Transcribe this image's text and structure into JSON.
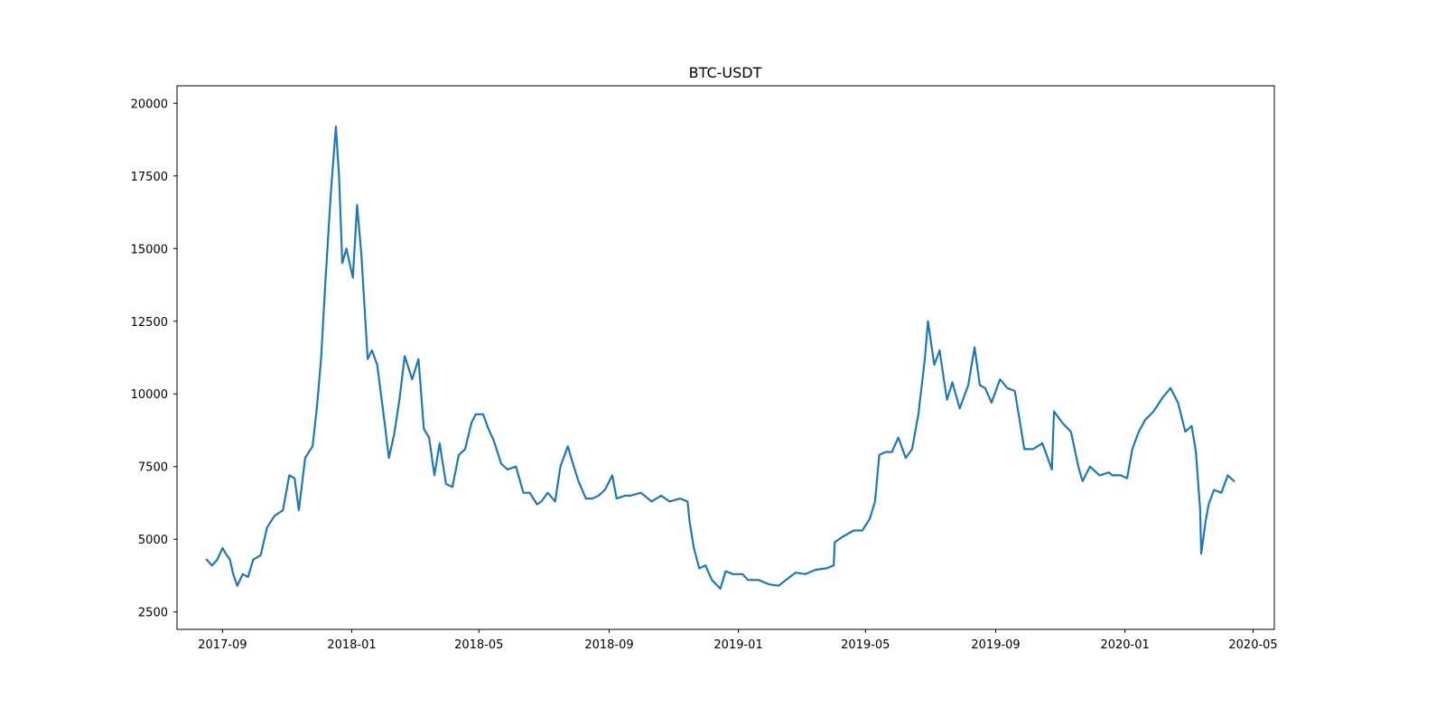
{
  "chart_data": {
    "type": "line",
    "title": "BTC-USDT",
    "xlabel": "",
    "ylabel": "",
    "xlim": [
      "2017-07-20",
      "2020-05-21"
    ],
    "ylim": [
      1900,
      20600
    ],
    "x_ticks": [
      "2017-09-01",
      "2018-01-01",
      "2018-05-01",
      "2018-09-01",
      "2019-01-01",
      "2019-05-01",
      "2019-09-01",
      "2020-01-01",
      "2020-05-01"
    ],
    "x_tick_labels": [
      "2017-09",
      "2018-01",
      "2018-05",
      "2018-09",
      "2019-01",
      "2019-05",
      "2019-09",
      "2020-01",
      "2020-05"
    ],
    "y_ticks": [
      2500,
      5000,
      7500,
      10000,
      12500,
      15000,
      17500,
      20000
    ],
    "y_tick_labels": [
      "2500",
      "5000",
      "7500",
      "10000",
      "12500",
      "15000",
      "17500",
      "20000"
    ],
    "grid": false,
    "legend": "none",
    "line_color": "#1f77b4",
    "series": [
      {
        "x": [
          "2017-08-17",
          "2017-08-22",
          "2017-08-27",
          "2017-09-01",
          "2017-09-05",
          "2017-09-08",
          "2017-09-11",
          "2017-09-15",
          "2017-09-20",
          "2017-09-25",
          "2017-09-30",
          "2017-10-07",
          "2017-10-13",
          "2017-10-20",
          "2017-10-28",
          "2017-11-03",
          "2017-11-08",
          "2017-11-12",
          "2017-11-18",
          "2017-11-25",
          "2017-11-29",
          "2017-12-03",
          "2017-12-07",
          "2017-12-12",
          "2017-12-17",
          "2017-12-20",
          "2017-12-23",
          "2017-12-27",
          "2018-01-02",
          "2018-01-06",
          "2018-01-10",
          "2018-01-16",
          "2018-01-20",
          "2018-01-25",
          "2018-02-01",
          "2018-02-05",
          "2018-02-10",
          "2018-02-15",
          "2018-02-20",
          "2018-02-27",
          "2018-03-05",
          "2018-03-10",
          "2018-03-15",
          "2018-03-20",
          "2018-03-25",
          "2018-03-31",
          "2018-04-06",
          "2018-04-12",
          "2018-04-18",
          "2018-04-24",
          "2018-04-28",
          "2018-05-05",
          "2018-05-10",
          "2018-05-15",
          "2018-05-22",
          "2018-05-28",
          "2018-06-05",
          "2018-06-12",
          "2018-06-18",
          "2018-06-25",
          "2018-06-29",
          "2018-07-05",
          "2018-07-12",
          "2018-07-17",
          "2018-07-24",
          "2018-07-28",
          "2018-08-03",
          "2018-08-10",
          "2018-08-16",
          "2018-08-22",
          "2018-08-28",
          "2018-09-04",
          "2018-09-08",
          "2018-09-16",
          "2018-09-21",
          "2018-10-01",
          "2018-10-11",
          "2018-10-20",
          "2018-10-28",
          "2018-11-07",
          "2018-11-14",
          "2018-11-16",
          "2018-11-20",
          "2018-11-25",
          "2018-12-01",
          "2018-12-07",
          "2018-12-15",
          "2018-12-20",
          "2018-12-27",
          "2019-01-05",
          "2019-01-10",
          "2019-01-20",
          "2019-01-30",
          "2019-02-08",
          "2019-02-15",
          "2019-02-24",
          "2019-03-05",
          "2019-03-15",
          "2019-03-25",
          "2019-04-01",
          "2019-04-02",
          "2019-04-10",
          "2019-04-20",
          "2019-04-28",
          "2019-05-05",
          "2019-05-10",
          "2019-05-14",
          "2019-05-20",
          "2019-05-26",
          "2019-06-01",
          "2019-06-08",
          "2019-06-14",
          "2019-06-20",
          "2019-06-26",
          "2019-06-29",
          "2019-07-05",
          "2019-07-10",
          "2019-07-14",
          "2019-07-17",
          "2019-07-22",
          "2019-07-29",
          "2019-08-06",
          "2019-08-12",
          "2019-08-17",
          "2019-08-22",
          "2019-08-28",
          "2019-09-05",
          "2019-09-12",
          "2019-09-19",
          "2019-09-24",
          "2019-09-28",
          "2019-10-06",
          "2019-10-15",
          "2019-10-24",
          "2019-10-26",
          "2019-11-03",
          "2019-11-11",
          "2019-11-18",
          "2019-11-22",
          "2019-11-29",
          "2019-12-08",
          "2019-12-17",
          "2019-12-20",
          "2019-12-28",
          "2020-01-03",
          "2020-01-08",
          "2020-01-14",
          "2020-01-20",
          "2020-01-28",
          "2020-02-06",
          "2020-02-13",
          "2020-02-20",
          "2020-02-27",
          "2020-03-04",
          "2020-03-08",
          "2020-03-12",
          "2020-03-13",
          "2020-03-17",
          "2020-03-20",
          "2020-03-25",
          "2020-04-01",
          "2020-04-07",
          "2020-04-13"
        ],
        "y": [
          4300,
          4100,
          4300,
          4700,
          4450,
          4300,
          3800,
          3400,
          3800,
          3700,
          4300,
          4450,
          5400,
          5800,
          6000,
          7200,
          7100,
          6000,
          7800,
          8200,
          9500,
          11200,
          13800,
          16800,
          19200,
          17500,
          14500,
          15000,
          14000,
          16500,
          14800,
          11200,
          11500,
          11000,
          9000,
          7800,
          8600,
          9800,
          11300,
          10500,
          11200,
          8800,
          8500,
          7200,
          8300,
          6900,
          6800,
          7900,
          8100,
          9000,
          9300,
          9300,
          8800,
          8400,
          7600,
          7400,
          7500,
          6600,
          6600,
          6200,
          6300,
          6600,
          6300,
          7500,
          8200,
          7700,
          7000,
          6400,
          6400,
          6500,
          6700,
          7200,
          6400,
          6500,
          6500,
          6600,
          6300,
          6500,
          6300,
          6400,
          6300,
          5600,
          4700,
          4000,
          4100,
          3600,
          3300,
          3900,
          3800,
          3800,
          3600,
          3600,
          3450,
          3400,
          3600,
          3850,
          3800,
          3950,
          4000,
          4100,
          4900,
          5100,
          5300,
          5300,
          5700,
          6300,
          7900,
          8000,
          8000,
          8500,
          7800,
          8100,
          9300,
          11200,
          12500,
          11000,
          11500,
          10500,
          9800,
          10400,
          9500,
          10300,
          11600,
          10300,
          10200,
          9700,
          10500,
          10200,
          10100,
          9000,
          8100,
          8100,
          8300,
          7400,
          9400,
          9000,
          8700,
          7500,
          7000,
          7500,
          7200,
          7300,
          7200,
          7200,
          7100,
          8100,
          8700,
          9100,
          9400,
          9900,
          10200,
          9700,
          8700,
          8900,
          8000,
          6000,
          4500,
          5600,
          6200,
          6700,
          6600,
          7200,
          7000
        ]
      }
    ]
  }
}
